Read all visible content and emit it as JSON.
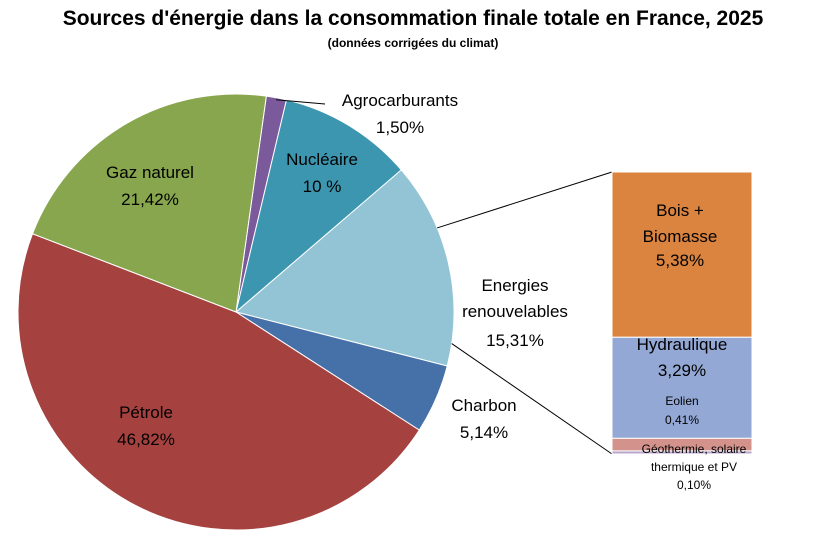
{
  "chart_data": {
    "type": "pie",
    "title": "Sources d'énergie dans la consommation finale totale en France, 2025",
    "subtitle": "(données corrigées du climat)",
    "slices": [
      {
        "label": "Agrocarburants",
        "value": 1.5,
        "value_label": "1,50%",
        "color": "#7b5a9c"
      },
      {
        "label": "Nucléaire",
        "value": 10,
        "value_label": "10 %",
        "color": "#3d96b0"
      },
      {
        "label": "Energies renouvelables",
        "label_lines": [
          "Energies",
          "renouvelables"
        ],
        "value": 15.31,
        "value_label": "15,31%",
        "color": "#93c4d6"
      },
      {
        "label": "Charbon",
        "value": 5.14,
        "value_label": "5,14%",
        "color": "#4570a8"
      },
      {
        "label": "Pétrole",
        "value": 46.82,
        "value_label": "46,82%",
        "color": "#a5423f"
      },
      {
        "label": "Gaz naturel",
        "value": 21.42,
        "value_label": "21,42%",
        "color": "#88a64d"
      }
    ],
    "breakdown": {
      "parent": "Energies renouvelables",
      "segments": [
        {
          "label": "Bois + Biomasse",
          "label_lines": [
            "Bois +",
            "Biomasse"
          ],
          "value": 5.38,
          "value_label": "5,38%",
          "color": "#da8440"
        },
        {
          "label": "Hydraulique",
          "value": 3.29,
          "value_label": "3,29%",
          "color": "#93a8d4"
        },
        {
          "label": "Eolien",
          "value": 0.41,
          "value_label": "0,41%",
          "color": "#d4928d"
        },
        {
          "label": "Géothermie, solaire thermique et PV",
          "label_lines": [
            "Géothermie, solaire",
            "thermique et PV"
          ],
          "value": 0.1,
          "value_label": "0,10%",
          "color": "#b9a8cc"
        }
      ]
    }
  }
}
